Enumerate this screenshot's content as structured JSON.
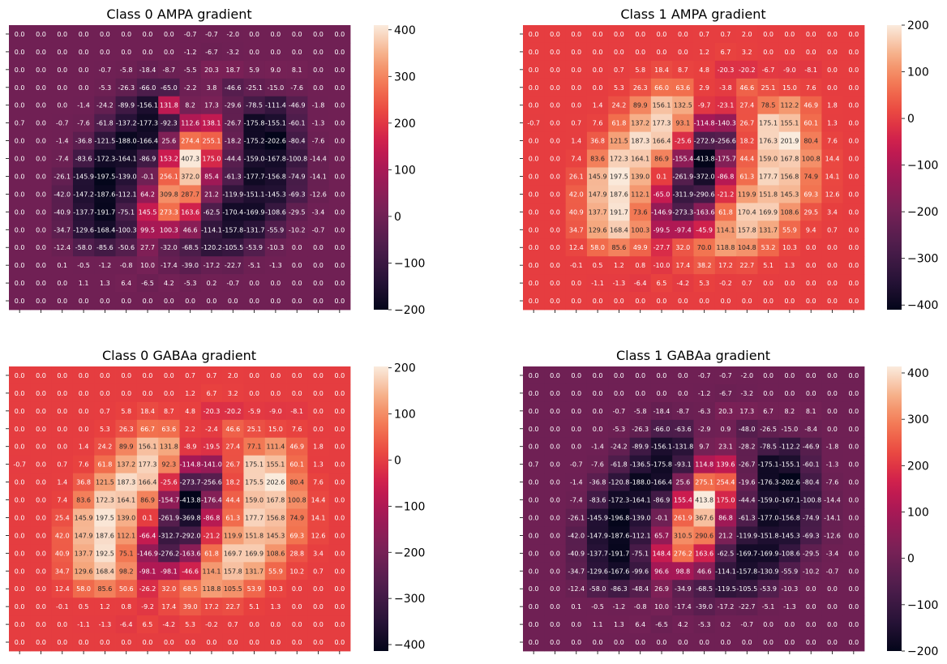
{
  "chart_data": [
    {
      "type": "heatmap",
      "title": "Class 0 AMPA gradient",
      "vmin": -200,
      "vmax": 410,
      "colorbar_ticks": [
        400,
        300,
        200,
        100,
        0,
        -100,
        -200
      ],
      "values": [
        [
          0.0,
          0.0,
          0.0,
          0.0,
          0.0,
          0.0,
          0.0,
          0.0,
          -0.7,
          -0.7,
          -2.0,
          0.0,
          0.0,
          0.0,
          0.0,
          0.0
        ],
        [
          0.0,
          0.0,
          0.0,
          0.0,
          0.0,
          0.0,
          0.0,
          0.0,
          -1.2,
          -6.7,
          -3.2,
          0.0,
          0.0,
          0.0,
          0.0,
          0.0
        ],
        [
          0.0,
          0.0,
          0.0,
          0.0,
          -0.7,
          -5.8,
          -18.4,
          -8.7,
          -5.5,
          20.3,
          18.7,
          5.9,
          9.0,
          8.1,
          0.0,
          0.0
        ],
        [
          0.0,
          0.0,
          0.0,
          0.0,
          -5.3,
          -26.3,
          -66.0,
          -65.0,
          -2.2,
          3.8,
          -46.6,
          -25.1,
          -15.0,
          -7.6,
          0.0,
          0.0
        ],
        [
          0.0,
          0.0,
          0.0,
          -1.4,
          -24.2,
          -89.9,
          -156.1,
          131.8,
          8.2,
          17.3,
          -29.6,
          -78.5,
          -111.4,
          -46.9,
          -1.8,
          0.0
        ],
        [
          0.7,
          0.0,
          -0.7,
          -7.6,
          -61.8,
          -137.2,
          -177.3,
          -92.3,
          112.6,
          138.1,
          -26.7,
          -175.8,
          -155.1,
          -60.1,
          -1.3,
          0.0
        ],
        [
          0.0,
          0.0,
          -1.4,
          -36.8,
          -121.5,
          -188.0,
          -166.4,
          25.6,
          274.4,
          255.1,
          -18.2,
          -175.2,
          -202.6,
          -80.4,
          -7.6,
          0.0
        ],
        [
          0.0,
          0.0,
          -7.4,
          -83.6,
          -172.3,
          -164.1,
          -86.9,
          153.2,
          407.3,
          175.0,
          -44.4,
          -159.0,
          -167.8,
          -100.8,
          -14.4,
          0.0
        ],
        [
          0.0,
          0.0,
          -26.1,
          -145.9,
          -197.5,
          -139.0,
          -0.1,
          256.1,
          372.0,
          85.4,
          -61.3,
          -177.7,
          -156.8,
          -74.9,
          -14.1,
          0.0
        ],
        [
          0.0,
          0.0,
          -42.0,
          -147.2,
          -187.6,
          -112.1,
          64.2,
          309.8,
          287.7,
          21.2,
          -119.9,
          -151.1,
          -145.3,
          -69.3,
          -12.6,
          0.0
        ],
        [
          0.0,
          0.0,
          -40.9,
          -137.7,
          -191.7,
          -75.1,
          145.5,
          273.3,
          163.6,
          -62.5,
          -170.4,
          -169.9,
          -108.6,
          -29.5,
          -3.4,
          0.0
        ],
        [
          0.0,
          0.0,
          -34.7,
          -129.6,
          -168.4,
          -100.3,
          99.5,
          100.3,
          46.6,
          -114.1,
          -157.8,
          -131.7,
          -55.9,
          -10.2,
          -0.7,
          0.0
        ],
        [
          0.0,
          0.0,
          -12.4,
          -58.0,
          -85.6,
          -50.6,
          27.7,
          -32.0,
          -68.5,
          -120.2,
          -105.5,
          -53.9,
          -10.3,
          0.0,
          0.0,
          0.0
        ],
        [
          0.0,
          0.0,
          0.1,
          -0.5,
          -1.2,
          -0.8,
          10.0,
          -17.4,
          -39.0,
          -17.2,
          -22.7,
          -5.1,
          -1.3,
          0.0,
          0.0,
          0.0
        ],
        [
          0.0,
          0.0,
          0.0,
          1.1,
          1.3,
          6.4,
          -6.5,
          4.2,
          -5.3,
          0.2,
          -0.7,
          0.0,
          0.0,
          0.0,
          0.0,
          0.0
        ],
        [
          0.0,
          0.0,
          0.0,
          0.0,
          0.0,
          0.0,
          0.0,
          0.0,
          0.0,
          0.0,
          0.0,
          0.0,
          0.0,
          0.0,
          0.0,
          0.0
        ]
      ]
    },
    {
      "type": "heatmap",
      "title": "Class 1 AMPA gradient",
      "vmin": -410,
      "vmax": 200,
      "colorbar_ticks": [
        200,
        100,
        0,
        -100,
        -200,
        -300,
        -400
      ],
      "values": [
        [
          0.0,
          0.0,
          0.0,
          0.0,
          0.0,
          0.0,
          0.0,
          0.0,
          0.7,
          0.7,
          2.0,
          0.0,
          0.0,
          0.0,
          0.0,
          0.0
        ],
        [
          0.0,
          0.0,
          0.0,
          0.0,
          0.0,
          0.0,
          0.0,
          0.0,
          1.2,
          6.7,
          3.2,
          0.0,
          0.0,
          0.0,
          0.0,
          0.0
        ],
        [
          0.0,
          0.0,
          0.0,
          0.0,
          0.7,
          5.8,
          18.4,
          8.7,
          4.8,
          -20.3,
          -20.2,
          -6.7,
          -9.0,
          -8.1,
          0.0,
          0.0
        ],
        [
          0.0,
          0.0,
          0.0,
          0.0,
          5.3,
          26.3,
          66.0,
          63.6,
          2.9,
          -3.8,
          46.6,
          25.1,
          15.0,
          7.6,
          0.0,
          0.0
        ],
        [
          0.0,
          0.0,
          0.0,
          1.4,
          24.2,
          89.9,
          156.1,
          132.5,
          -9.7,
          -23.1,
          27.4,
          78.5,
          112.2,
          46.9,
          1.8,
          0.0
        ],
        [
          -0.7,
          0.0,
          0.7,
          7.6,
          61.8,
          137.2,
          177.3,
          93.1,
          -114.8,
          -140.3,
          26.7,
          175.1,
          155.1,
          60.1,
          1.3,
          0.0
        ],
        [
          0.0,
          0.0,
          1.4,
          36.8,
          121.5,
          187.3,
          166.4,
          -25.6,
          -272.9,
          -256.6,
          18.2,
          176.3,
          201.9,
          80.4,
          7.6,
          0.0
        ],
        [
          0.0,
          0.0,
          7.4,
          83.6,
          172.3,
          164.1,
          86.9,
          -155.4,
          -413.8,
          -175.7,
          44.4,
          159.0,
          167.8,
          100.8,
          14.4,
          0.0
        ],
        [
          0.0,
          0.0,
          26.1,
          145.9,
          197.5,
          139.0,
          0.1,
          -261.9,
          -372.0,
          -86.8,
          61.3,
          177.7,
          156.8,
          74.9,
          14.1,
          0.0
        ],
        [
          0.0,
          0.0,
          42.0,
          147.9,
          187.6,
          112.1,
          -65.0,
          -311.9,
          -290.6,
          -21.2,
          119.9,
          151.8,
          145.3,
          69.3,
          12.6,
          0.0
        ],
        [
          0.0,
          0.0,
          40.9,
          137.7,
          191.7,
          73.6,
          -146.9,
          -273.3,
          -163.6,
          61.8,
          170.4,
          169.9,
          108.6,
          29.5,
          3.4,
          0.0
        ],
        [
          0.0,
          0.0,
          34.7,
          129.6,
          168.4,
          100.3,
          -99.5,
          -97.4,
          -45.9,
          114.1,
          157.8,
          131.7,
          55.9,
          9.4,
          0.7,
          0.0
        ],
        [
          0.0,
          0.0,
          12.4,
          58.0,
          85.6,
          49.9,
          -27.7,
          32.0,
          70.0,
          118.8,
          104.8,
          53.2,
          10.3,
          0.0,
          0.0,
          0.0
        ],
        [
          0.0,
          0.0,
          -0.1,
          0.5,
          1.2,
          0.8,
          -10.0,
          17.4,
          38.2,
          17.2,
          22.7,
          5.1,
          1.3,
          0.0,
          0.0,
          0.0
        ],
        [
          0.0,
          0.0,
          0.0,
          -1.1,
          -1.3,
          -6.4,
          6.5,
          -4.2,
          5.3,
          -0.2,
          0.7,
          0.0,
          0.0,
          0.0,
          0.0,
          0.0
        ],
        [
          0.0,
          0.0,
          0.0,
          0.0,
          0.0,
          0.0,
          0.0,
          0.0,
          0.0,
          0.0,
          0.0,
          0.0,
          0.0,
          0.0,
          0.0,
          0.0
        ]
      ]
    },
    {
      "type": "heatmap",
      "title": "Class 0 GABAa gradient",
      "vmin": -414,
      "vmax": 203,
      "colorbar_ticks": [
        200,
        100,
        0,
        -100,
        -200,
        -300,
        -400
      ],
      "values": [
        [
          0.0,
          0.0,
          0.0,
          0.0,
          0.0,
          0.0,
          0.0,
          0.0,
          0.7,
          0.7,
          2.0,
          0.0,
          0.0,
          0.0,
          0.0,
          0.0
        ],
        [
          0.0,
          0.0,
          0.0,
          0.0,
          0.0,
          0.0,
          0.0,
          0.0,
          1.2,
          6.7,
          3.2,
          0.0,
          0.0,
          0.0,
          0.0,
          0.0
        ],
        [
          0.0,
          0.0,
          0.0,
          0.0,
          0.7,
          5.8,
          18.4,
          8.7,
          4.8,
          -20.3,
          -20.2,
          -5.9,
          -9.0,
          -8.1,
          0.0,
          0.0
        ],
        [
          0.0,
          0.0,
          0.0,
          0.0,
          5.3,
          26.3,
          66.7,
          63.6,
          2.2,
          -2.4,
          46.6,
          25.1,
          15.0,
          7.6,
          0.0,
          0.0
        ],
        [
          0.0,
          0.0,
          0.0,
          1.4,
          24.2,
          89.9,
          156.1,
          131.8,
          -8.9,
          -19.5,
          27.4,
          77.1,
          111.4,
          46.9,
          1.8,
          0.0
        ],
        [
          -0.7,
          0.0,
          0.7,
          7.6,
          61.8,
          137.2,
          177.3,
          92.3,
          -114.8,
          -141.0,
          26.7,
          175.1,
          155.1,
          60.1,
          1.3,
          0.0
        ],
        [
          0.0,
          0.0,
          1.4,
          36.8,
          121.5,
          187.3,
          166.4,
          -25.6,
          -273.7,
          -256.6,
          18.2,
          175.5,
          202.6,
          80.4,
          7.6,
          0.0
        ],
        [
          0.0,
          0.0,
          7.4,
          83.6,
          172.3,
          164.1,
          86.9,
          -154.7,
          -413.8,
          -176.4,
          44.4,
          159.0,
          167.8,
          100.8,
          14.4,
          0.0
        ],
        [
          0.0,
          0.0,
          25.4,
          145.9,
          197.5,
          139.0,
          0.1,
          -261.9,
          -369.8,
          -86.8,
          61.3,
          177.7,
          156.8,
          74.9,
          14.1,
          0.0
        ],
        [
          0.0,
          0.0,
          42.0,
          147.9,
          187.6,
          112.1,
          -66.4,
          -312.7,
          -292.0,
          -21.2,
          119.9,
          151.8,
          145.3,
          69.3,
          12.6,
          0.0
        ],
        [
          0.0,
          0.0,
          40.9,
          137.7,
          192.5,
          75.1,
          -146.9,
          -276.2,
          -163.6,
          61.8,
          169.7,
          169.9,
          108.6,
          28.8,
          3.4,
          0.0
        ],
        [
          0.0,
          0.0,
          34.7,
          129.6,
          168.4,
          98.2,
          -98.1,
          -98.1,
          -46.6,
          114.1,
          157.8,
          131.7,
          55.9,
          10.2,
          0.7,
          0.0
        ],
        [
          0.0,
          0.0,
          12.4,
          58.0,
          85.6,
          50.6,
          -26.2,
          32.0,
          68.5,
          118.8,
          105.5,
          53.9,
          10.3,
          0.0,
          0.0,
          0.0
        ],
        [
          0.0,
          0.0,
          -0.1,
          0.5,
          1.2,
          0.8,
          -9.2,
          17.4,
          39.0,
          17.2,
          22.7,
          5.1,
          1.3,
          0.0,
          0.0,
          0.0
        ],
        [
          0.0,
          0.0,
          0.0,
          -1.1,
          -1.3,
          -6.4,
          6.5,
          -4.2,
          5.3,
          -0.2,
          0.7,
          0.0,
          0.0,
          0.0,
          0.0,
          0.0
        ],
        [
          0.0,
          0.0,
          0.0,
          0.0,
          0.0,
          0.0,
          0.0,
          0.0,
          0.0,
          0.0,
          0.0,
          0.0,
          0.0,
          0.0,
          0.0,
          0.0
        ]
      ]
    },
    {
      "type": "heatmap",
      "title": "Class 1 GABAa gradient",
      "vmin": -200,
      "vmax": 414,
      "colorbar_ticks": [
        400,
        300,
        200,
        100,
        0,
        -100,
        -200
      ],
      "values": [
        [
          0.0,
          0.0,
          0.0,
          0.0,
          0.0,
          0.0,
          0.0,
          0.0,
          -0.7,
          -0.7,
          -2.0,
          0.0,
          0.0,
          0.0,
          0.0,
          0.0
        ],
        [
          0.0,
          0.0,
          0.0,
          0.0,
          0.0,
          0.0,
          0.0,
          0.0,
          -1.2,
          -6.7,
          -3.2,
          0.0,
          0.0,
          0.0,
          0.0,
          0.0
        ],
        [
          0.0,
          0.0,
          0.0,
          0.0,
          -0.7,
          -5.8,
          -18.4,
          -8.7,
          -6.3,
          20.3,
          17.3,
          6.7,
          8.2,
          8.1,
          0.0,
          0.0
        ],
        [
          0.0,
          0.0,
          0.0,
          0.0,
          -5.3,
          -26.3,
          -66.0,
          -63.6,
          -2.9,
          0.9,
          -48.0,
          -26.5,
          -15.0,
          -8.4,
          0.0,
          0.0
        ],
        [
          0.0,
          0.0,
          0.0,
          -1.4,
          -24.2,
          -89.9,
          -156.1,
          -131.8,
          9.7,
          23.1,
          -28.2,
          -78.5,
          -112.2,
          -46.9,
          -1.8,
          0.0
        ],
        [
          0.7,
          0.0,
          -0.7,
          -7.6,
          -61.8,
          -136.5,
          -175.8,
          -93.1,
          114.8,
          139.6,
          -26.7,
          -175.1,
          -155.1,
          -60.1,
          -1.3,
          0.0
        ],
        [
          0.0,
          0.0,
          -1.4,
          -36.8,
          -120.8,
          -188.0,
          -166.4,
          25.6,
          275.1,
          254.4,
          -19.6,
          -176.3,
          -202.6,
          -80.4,
          -7.6,
          0.0
        ],
        [
          0.0,
          0.0,
          -7.4,
          -83.6,
          -172.3,
          -164.1,
          -86.9,
          155.4,
          413.8,
          175.0,
          -44.4,
          -159.0,
          -167.1,
          -100.8,
          -14.4,
          0.0
        ],
        [
          0.0,
          0.0,
          -26.1,
          -145.9,
          -196.8,
          -139.0,
          -0.1,
          261.9,
          367.6,
          86.8,
          -61.3,
          -177.0,
          -156.8,
          -74.9,
          -14.1,
          0.0
        ],
        [
          0.0,
          0.0,
          -42.0,
          -147.9,
          -187.6,
          -112.1,
          65.7,
          310.5,
          290.6,
          21.2,
          -119.9,
          -151.8,
          -145.3,
          -69.3,
          -12.6,
          0.0
        ],
        [
          0.0,
          0.0,
          -40.9,
          -137.7,
          -191.7,
          -75.1,
          148.4,
          276.2,
          163.6,
          -62.5,
          -169.7,
          -169.9,
          -108.6,
          -29.5,
          -3.4,
          0.0
        ],
        [
          0.0,
          0.0,
          -34.7,
          -129.6,
          -167.6,
          -99.6,
          96.6,
          98.8,
          46.6,
          -114.1,
          -157.8,
          -130.9,
          -55.9,
          -10.2,
          -0.7,
          0.0
        ],
        [
          0.0,
          0.0,
          -12.4,
          -58.0,
          -86.3,
          -48.4,
          26.9,
          -34.9,
          -68.5,
          -119.5,
          -105.5,
          -53.9,
          -10.3,
          0.0,
          0.0,
          0.0
        ],
        [
          0.0,
          0.0,
          0.1,
          -0.5,
          -1.2,
          -0.8,
          10.0,
          -17.4,
          -39.0,
          -17.2,
          -22.7,
          -5.1,
          -1.3,
          0.0,
          0.0,
          0.0
        ],
        [
          0.0,
          0.0,
          0.0,
          1.1,
          1.3,
          6.4,
          -6.5,
          4.2,
          -5.3,
          0.2,
          -0.7,
          0.0,
          0.0,
          0.0,
          0.0,
          0.0
        ],
        [
          0.0,
          0.0,
          0.0,
          0.0,
          0.0,
          0.0,
          0.0,
          0.0,
          0.0,
          0.0,
          0.0,
          0.0,
          0.0,
          0.0,
          0.0,
          0.0
        ]
      ]
    }
  ]
}
